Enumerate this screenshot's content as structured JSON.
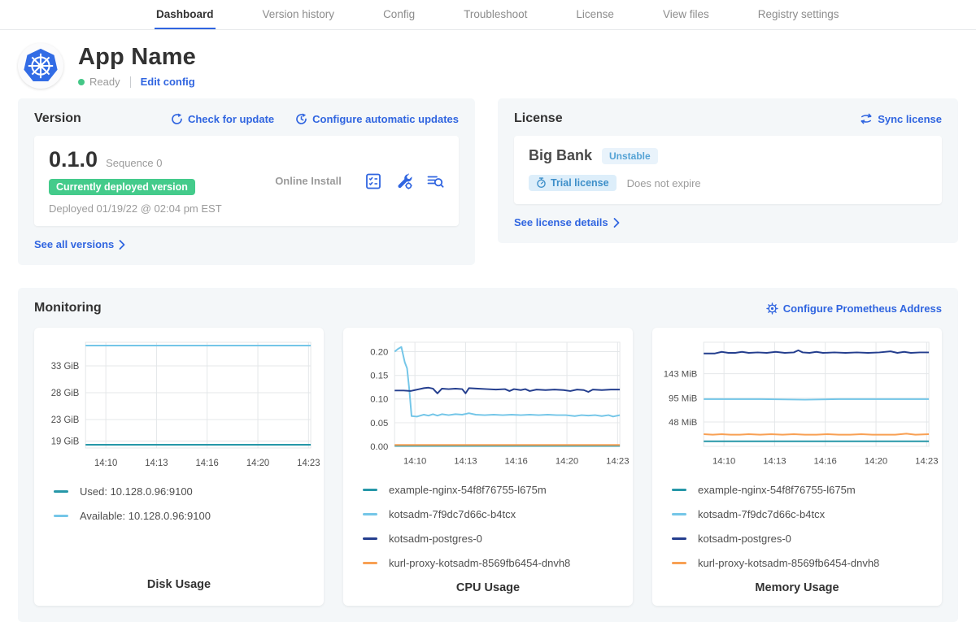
{
  "topnav": {
    "tabs": [
      {
        "label": "Dashboard",
        "active": true
      },
      {
        "label": "Version history",
        "active": false
      },
      {
        "label": "Config",
        "active": false
      },
      {
        "label": "Troubleshoot",
        "active": false
      },
      {
        "label": "License",
        "active": false
      },
      {
        "label": "View files",
        "active": false
      },
      {
        "label": "Registry settings",
        "active": false
      }
    ]
  },
  "app_header": {
    "title": "App Name",
    "status": "Ready",
    "edit_link": "Edit config",
    "status_color": "#44c787"
  },
  "version_card": {
    "title": "Version",
    "check_update_label": "Check for update",
    "configure_updates_label": "Configure automatic updates",
    "version_number": "0.1.0",
    "sequence": "Sequence 0",
    "deployed_badge": "Currently deployed version",
    "deployed_badge_color": "#44cb8b",
    "deployed_at": "Deployed 01/19/22 @ 02:04 pm EST",
    "install_type": "Online Install",
    "see_all_label": "See all versions"
  },
  "license_card": {
    "title": "License",
    "sync_label": "Sync license",
    "customer_name": "Big Bank",
    "channel": "Unstable",
    "trial_label": "Trial license",
    "expiry": "Does not expire",
    "details_label": "See license details"
  },
  "monitoring": {
    "title": "Monitoring",
    "configure_label": "Configure Prometheus Address"
  },
  "colors": {
    "link_blue": "#3065e0",
    "k8s_blue": "#326ce5",
    "teal": "#2697a8",
    "light_blue": "#74c6e8",
    "navy": "#243e8e",
    "orange": "#f8a054"
  },
  "chart_data": [
    {
      "type": "line",
      "title": "Disk Usage",
      "ylim": [
        17.7,
        37.4
      ],
      "y_ticks": [
        {
          "v": 33,
          "label": "33 GiB"
        },
        {
          "v": 28,
          "label": "28 GiB"
        },
        {
          "v": 23,
          "label": "23 GiB"
        },
        {
          "v": 19,
          "label": "19 GiB"
        }
      ],
      "x_ticks": [
        {
          "pos": 0.09,
          "label": "14:10"
        },
        {
          "pos": 0.315,
          "label": "14:13"
        },
        {
          "pos": 0.54,
          "label": "14:16"
        },
        {
          "pos": 0.765,
          "label": "14:20"
        },
        {
          "pos": 0.99,
          "label": "14:23"
        }
      ],
      "series": [
        {
          "name": "Used: 10.128.0.96:9100",
          "color": "#2697a8",
          "points": [
            [
              0,
              18.3
            ],
            [
              1,
              18.3
            ]
          ]
        },
        {
          "name": "Available: 10.128.0.96:9100",
          "color": "#74c6e8",
          "points": [
            [
              0,
              36.8
            ],
            [
              1,
              36.8
            ]
          ]
        }
      ]
    },
    {
      "type": "line",
      "title": "CPU Usage",
      "ylim": [
        0,
        0.22
      ],
      "y_ticks": [
        {
          "v": 0.2,
          "label": "0.20"
        },
        {
          "v": 0.15,
          "label": "0.15"
        },
        {
          "v": 0.1,
          "label": "0.10"
        },
        {
          "v": 0.05,
          "label": "0.05"
        },
        {
          "v": 0.0,
          "label": "0.00"
        }
      ],
      "x_ticks": [
        {
          "pos": 0.09,
          "label": "14:10"
        },
        {
          "pos": 0.315,
          "label": "14:13"
        },
        {
          "pos": 0.54,
          "label": "14:16"
        },
        {
          "pos": 0.765,
          "label": "14:20"
        },
        {
          "pos": 0.99,
          "label": "14:23"
        }
      ],
      "series": [
        {
          "name": "example-nginx-54f8f76755-l675m",
          "color": "#2697a8",
          "points": [
            [
              0,
              0.001
            ],
            [
              1,
              0.001
            ]
          ]
        },
        {
          "name": "kotsadm-7f9dc7d66c-b4tcx",
          "color": "#74c6e8",
          "points": [
            [
              0,
              0.2
            ],
            [
              0.015,
              0.206
            ],
            [
              0.03,
              0.21
            ],
            [
              0.045,
              0.178
            ],
            [
              0.055,
              0.165
            ],
            [
              0.065,
              0.12
            ],
            [
              0.075,
              0.064
            ],
            [
              0.1,
              0.063
            ],
            [
              0.13,
              0.067
            ],
            [
              0.15,
              0.065
            ],
            [
              0.17,
              0.068
            ],
            [
              0.19,
              0.065
            ],
            [
              0.21,
              0.068
            ],
            [
              0.24,
              0.066
            ],
            [
              0.27,
              0.068
            ],
            [
              0.3,
              0.067
            ],
            [
              0.33,
              0.07
            ],
            [
              0.36,
              0.067
            ],
            [
              0.4,
              0.066
            ],
            [
              0.44,
              0.067
            ],
            [
              0.48,
              0.066
            ],
            [
              0.52,
              0.067
            ],
            [
              0.56,
              0.066
            ],
            [
              0.6,
              0.067
            ],
            [
              0.64,
              0.066
            ],
            [
              0.68,
              0.067
            ],
            [
              0.72,
              0.066
            ],
            [
              0.76,
              0.066
            ],
            [
              0.8,
              0.064
            ],
            [
              0.83,
              0.066
            ],
            [
              0.86,
              0.065
            ],
            [
              0.89,
              0.066
            ],
            [
              0.92,
              0.064
            ],
            [
              0.95,
              0.066
            ],
            [
              0.97,
              0.063
            ],
            [
              1,
              0.066
            ]
          ]
        },
        {
          "name": "kotsadm-postgres-0",
          "color": "#243e8e",
          "points": [
            [
              0,
              0.118
            ],
            [
              0.04,
              0.118
            ],
            [
              0.07,
              0.117
            ],
            [
              0.09,
              0.119
            ],
            [
              0.11,
              0.121
            ],
            [
              0.13,
              0.123
            ],
            [
              0.15,
              0.124
            ],
            [
              0.17,
              0.122
            ],
            [
              0.19,
              0.112
            ],
            [
              0.21,
              0.122
            ],
            [
              0.24,
              0.121
            ],
            [
              0.27,
              0.122
            ],
            [
              0.3,
              0.121
            ],
            [
              0.315,
              0.112
            ],
            [
              0.33,
              0.123
            ],
            [
              0.37,
              0.122
            ],
            [
              0.41,
              0.121
            ],
            [
              0.45,
              0.12
            ],
            [
              0.49,
              0.121
            ],
            [
              0.51,
              0.117
            ],
            [
              0.53,
              0.121
            ],
            [
              0.56,
              0.119
            ],
            [
              0.58,
              0.121
            ],
            [
              0.6,
              0.117
            ],
            [
              0.63,
              0.12
            ],
            [
              0.67,
              0.119
            ],
            [
              0.71,
              0.12
            ],
            [
              0.75,
              0.119
            ],
            [
              0.78,
              0.117
            ],
            [
              0.81,
              0.12
            ],
            [
              0.84,
              0.119
            ],
            [
              0.86,
              0.115
            ],
            [
              0.88,
              0.12
            ],
            [
              0.92,
              0.119
            ],
            [
              0.96,
              0.12
            ],
            [
              1,
              0.12
            ]
          ]
        },
        {
          "name": "kurl-proxy-kotsadm-8569fb6454-dnvh8",
          "color": "#f8a054",
          "points": [
            [
              0,
              0.003
            ],
            [
              1,
              0.003
            ]
          ]
        }
      ]
    },
    {
      "type": "line",
      "title": "Memory Usage",
      "ylim": [
        0,
        205
      ],
      "y_ticks": [
        {
          "v": 143,
          "label": "143 MiB"
        },
        {
          "v": 95,
          "label": "95 MiB"
        },
        {
          "v": 48,
          "label": "48 MiB"
        }
      ],
      "x_ticks": [
        {
          "pos": 0.09,
          "label": "14:10"
        },
        {
          "pos": 0.315,
          "label": "14:13"
        },
        {
          "pos": 0.54,
          "label": "14:16"
        },
        {
          "pos": 0.765,
          "label": "14:20"
        },
        {
          "pos": 0.99,
          "label": "14:23"
        }
      ],
      "series": [
        {
          "name": "example-nginx-54f8f76755-l675m",
          "color": "#2697a8",
          "points": [
            [
              0,
              10
            ],
            [
              1,
              10
            ]
          ]
        },
        {
          "name": "kotsadm-7f9dc7d66c-b4tcx",
          "color": "#74c6e8",
          "points": [
            [
              0,
              93
            ],
            [
              0.25,
              93
            ],
            [
              0.45,
              92
            ],
            [
              0.6,
              93
            ],
            [
              1,
              93
            ]
          ]
        },
        {
          "name": "kotsadm-postgres-0",
          "color": "#243e8e",
          "points": [
            [
              0,
              183
            ],
            [
              0.05,
              183
            ],
            [
              0.08,
              186
            ],
            [
              0.11,
              184
            ],
            [
              0.14,
              184
            ],
            [
              0.17,
              186
            ],
            [
              0.2,
              184
            ],
            [
              0.24,
              185
            ],
            [
              0.28,
              184
            ],
            [
              0.32,
              186
            ],
            [
              0.36,
              184
            ],
            [
              0.4,
              185
            ],
            [
              0.42,
              189
            ],
            [
              0.44,
              185
            ],
            [
              0.47,
              184
            ],
            [
              0.5,
              186
            ],
            [
              0.53,
              184
            ],
            [
              0.58,
              185
            ],
            [
              0.63,
              184
            ],
            [
              0.68,
              185
            ],
            [
              0.73,
              184
            ],
            [
              0.78,
              185
            ],
            [
              0.83,
              187
            ],
            [
              0.86,
              184
            ],
            [
              0.89,
              186
            ],
            [
              0.92,
              184
            ],
            [
              0.96,
              185
            ],
            [
              1,
              185
            ]
          ]
        },
        {
          "name": "kurl-proxy-kotsadm-8569fb6454-dnvh8",
          "color": "#f8a054",
          "points": [
            [
              0,
              24
            ],
            [
              0.04,
              23
            ],
            [
              0.08,
              24
            ],
            [
              0.12,
              23
            ],
            [
              0.16,
              23
            ],
            [
              0.2,
              24
            ],
            [
              0.25,
              23
            ],
            [
              0.3,
              24
            ],
            [
              0.35,
              23
            ],
            [
              0.4,
              24
            ],
            [
              0.45,
              23
            ],
            [
              0.5,
              23
            ],
            [
              0.55,
              24
            ],
            [
              0.6,
              23
            ],
            [
              0.65,
              23
            ],
            [
              0.7,
              24
            ],
            [
              0.75,
              23
            ],
            [
              0.8,
              23
            ],
            [
              0.85,
              23
            ],
            [
              0.9,
              25
            ],
            [
              0.94,
              23
            ],
            [
              1,
              24
            ]
          ]
        }
      ]
    }
  ]
}
